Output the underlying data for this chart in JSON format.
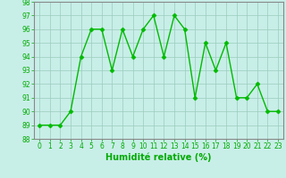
{
  "x": [
    0,
    1,
    2,
    3,
    4,
    5,
    6,
    7,
    8,
    9,
    10,
    11,
    12,
    13,
    14,
    15,
    16,
    17,
    18,
    19,
    20,
    21,
    22,
    23
  ],
  "y": [
    89,
    89,
    89,
    90,
    94,
    96,
    96,
    93,
    96,
    94,
    96,
    97,
    94,
    97,
    96,
    91,
    95,
    93,
    95,
    91,
    91,
    92,
    90,
    90
  ],
  "line_color": "#00BB00",
  "marker": "D",
  "marker_size": 2.5,
  "bg_color": "#C8EEE8",
  "grid_color": "#99CCBB",
  "xlabel": "Humidité relative (%)",
  "xlabel_color": "#00AA00",
  "ylim": [
    88,
    98
  ],
  "xlim": [
    -0.5,
    23.5
  ],
  "yticks": [
    88,
    89,
    90,
    91,
    92,
    93,
    94,
    95,
    96,
    97,
    98
  ],
  "xticks": [
    0,
    1,
    2,
    3,
    4,
    5,
    6,
    7,
    8,
    9,
    10,
    11,
    12,
    13,
    14,
    15,
    16,
    17,
    18,
    19,
    20,
    21,
    22,
    23
  ],
  "tick_label_color": "#00AA00",
  "tick_label_size": 5.5,
  "xlabel_size": 7,
  "line_width": 1.0,
  "spine_color": "#888888"
}
